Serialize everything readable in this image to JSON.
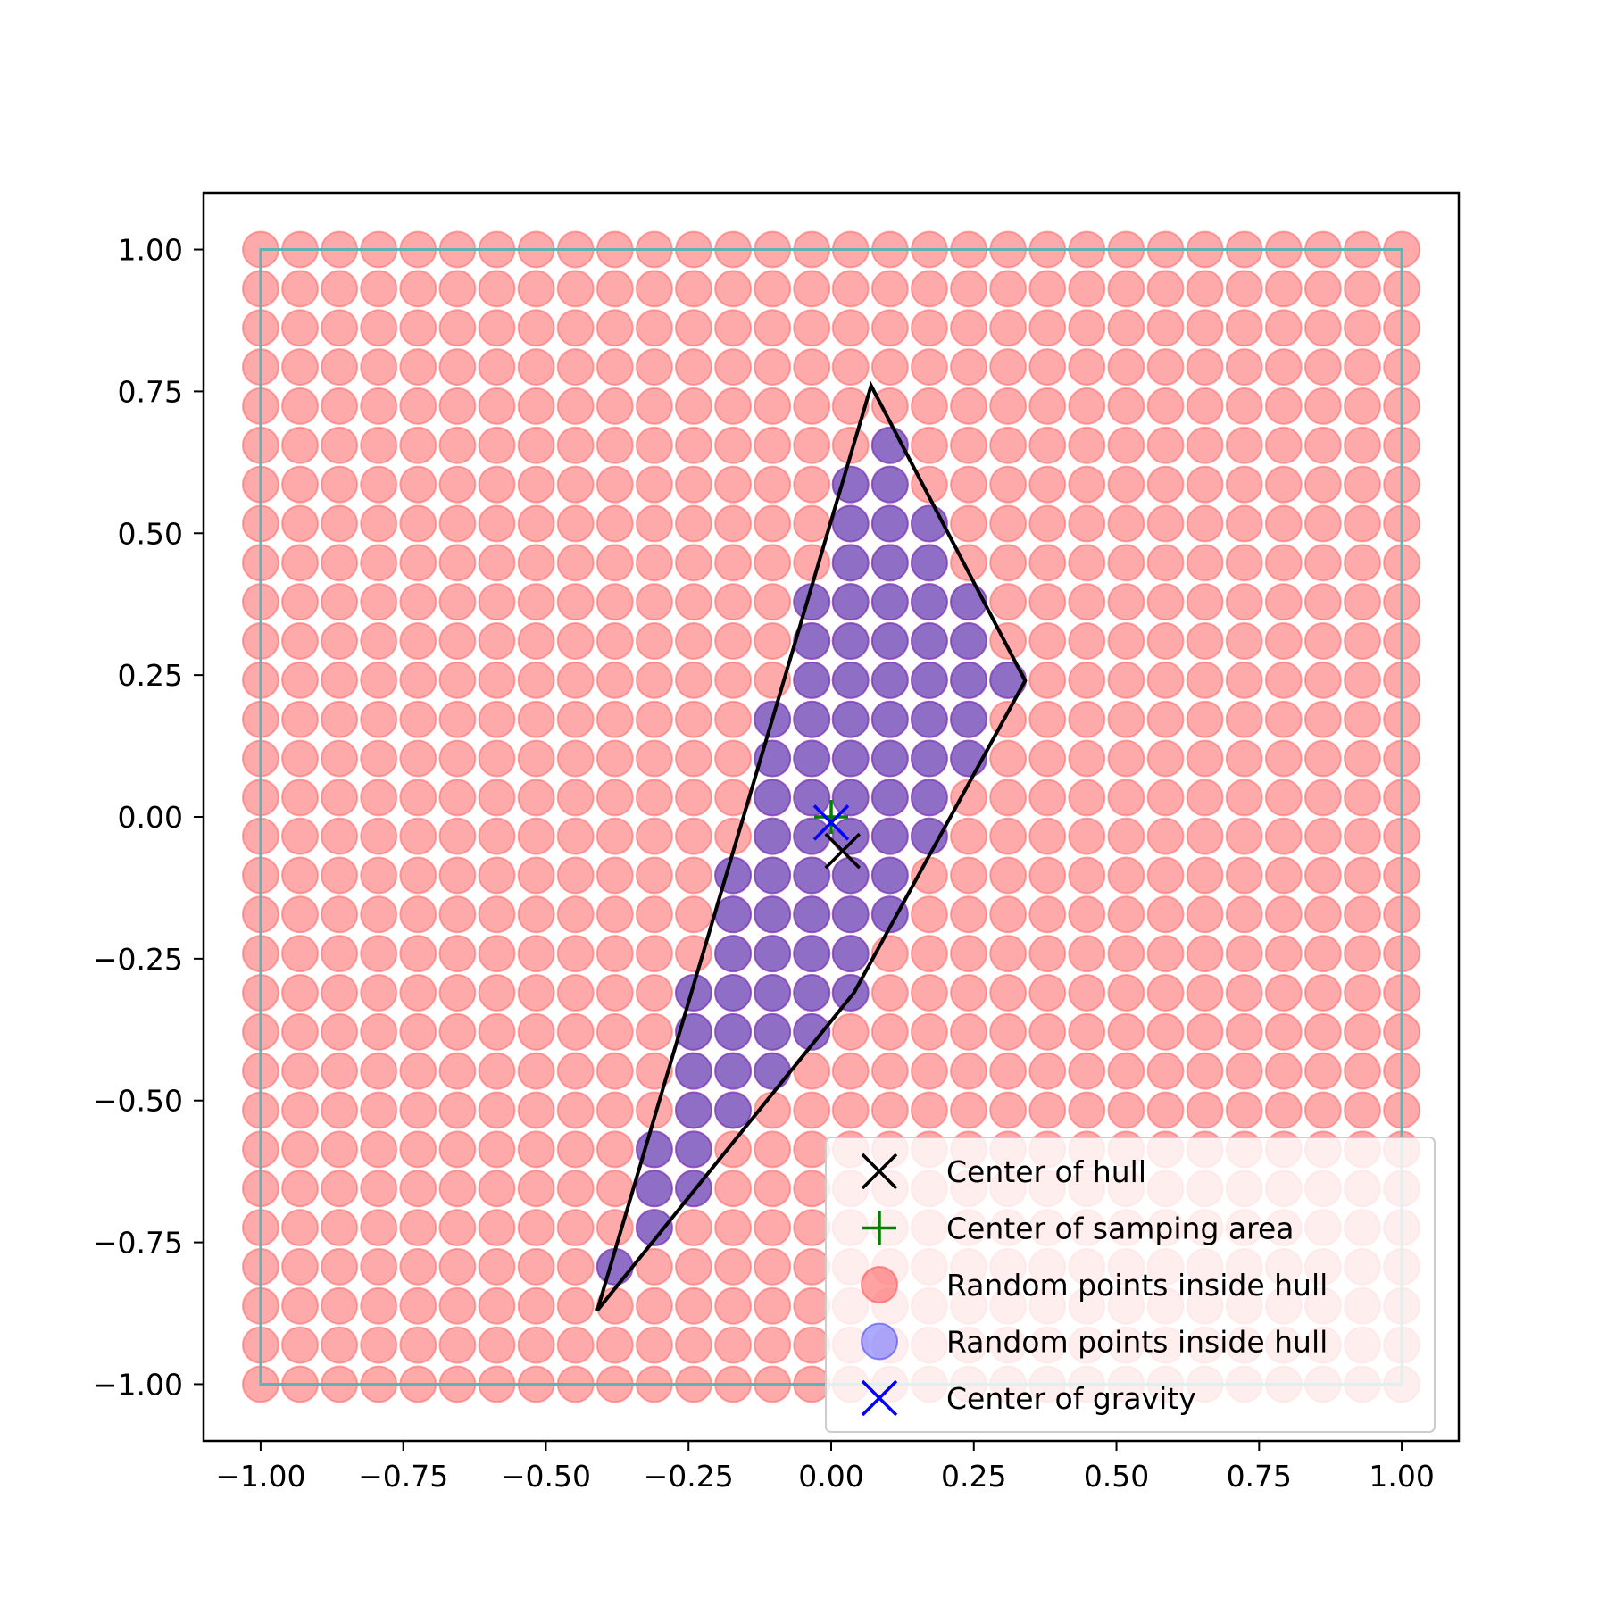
{
  "chart_data": {
    "type": "scatter",
    "title": "",
    "xlabel": "",
    "ylabel": "",
    "xlim": [
      -1.1,
      1.1
    ],
    "ylim": [
      -1.1,
      1.1
    ],
    "grid": false,
    "x_ticks": [
      -1.0,
      -0.75,
      -0.5,
      -0.25,
      0.0,
      0.25,
      0.5,
      0.75,
      1.0
    ],
    "y_ticks": [
      -1.0,
      -0.75,
      -0.5,
      -0.25,
      0.0,
      0.25,
      0.5,
      0.75,
      1.0
    ],
    "x_tick_labels": [
      "−1.00",
      "−0.75",
      "−0.50",
      "−0.25",
      "0.00",
      "0.25",
      "0.50",
      "0.75",
      "1.00"
    ],
    "y_tick_labels": [
      "−1.00",
      "−0.75",
      "−0.50",
      "−0.25",
      "0.00",
      "0.25",
      "0.50",
      "0.75",
      "1.00"
    ],
    "sampling_area": [
      [
        -1.0,
        -1.0
      ],
      [
        1.0,
        -1.0
      ],
      [
        1.0,
        1.0
      ],
      [
        -1.0,
        1.0
      ]
    ],
    "hull": [
      [
        0.07,
        0.76
      ],
      [
        0.34,
        0.24
      ],
      [
        0.04,
        -0.31
      ],
      [
        -0.41,
        -0.87
      ]
    ],
    "grid_points": {
      "x_values": [
        -1.0,
        -0.931,
        -0.862,
        -0.793,
        -0.724,
        -0.655,
        -0.586,
        -0.517,
        -0.448,
        -0.379,
        -0.31,
        -0.241,
        -0.172,
        -0.103,
        -0.034,
        0.034,
        0.103,
        0.172,
        0.241,
        0.31,
        0.379,
        0.448,
        0.517,
        0.586,
        0.655,
        0.724,
        0.793,
        0.862,
        0.931,
        1.0
      ],
      "y_values": [
        -1.0,
        -0.931,
        -0.862,
        -0.793,
        -0.724,
        -0.655,
        -0.586,
        -0.517,
        -0.448,
        -0.379,
        -0.31,
        -0.241,
        -0.172,
        -0.103,
        -0.034,
        0.034,
        0.103,
        0.172,
        0.241,
        0.31,
        0.379,
        0.448,
        0.517,
        0.586,
        0.655,
        0.724,
        0.793,
        0.862,
        0.931,
        1.0
      ]
    },
    "series": [
      {
        "name": "Center of hull",
        "marker": "x",
        "color": "#000000",
        "points": [
          [
            0.02,
            -0.06
          ]
        ]
      },
      {
        "name": "Center of samping area",
        "marker": "+",
        "color": "#008000",
        "points": [
          [
            0.0,
            0.0
          ]
        ]
      },
      {
        "name": "Random points inside hull",
        "marker": "o",
        "color": "#ff5555",
        "role": "all_grid_points"
      },
      {
        "name": "Random points inside hull",
        "marker": "o",
        "color": "#6a5acd",
        "role": "grid_points_inside_hull"
      },
      {
        "name": "Center of gravity",
        "marker": "x",
        "color": "#0000ff",
        "points": [
          [
            0.0,
            -0.01
          ]
        ]
      }
    ],
    "legend_position": "lower right"
  }
}
